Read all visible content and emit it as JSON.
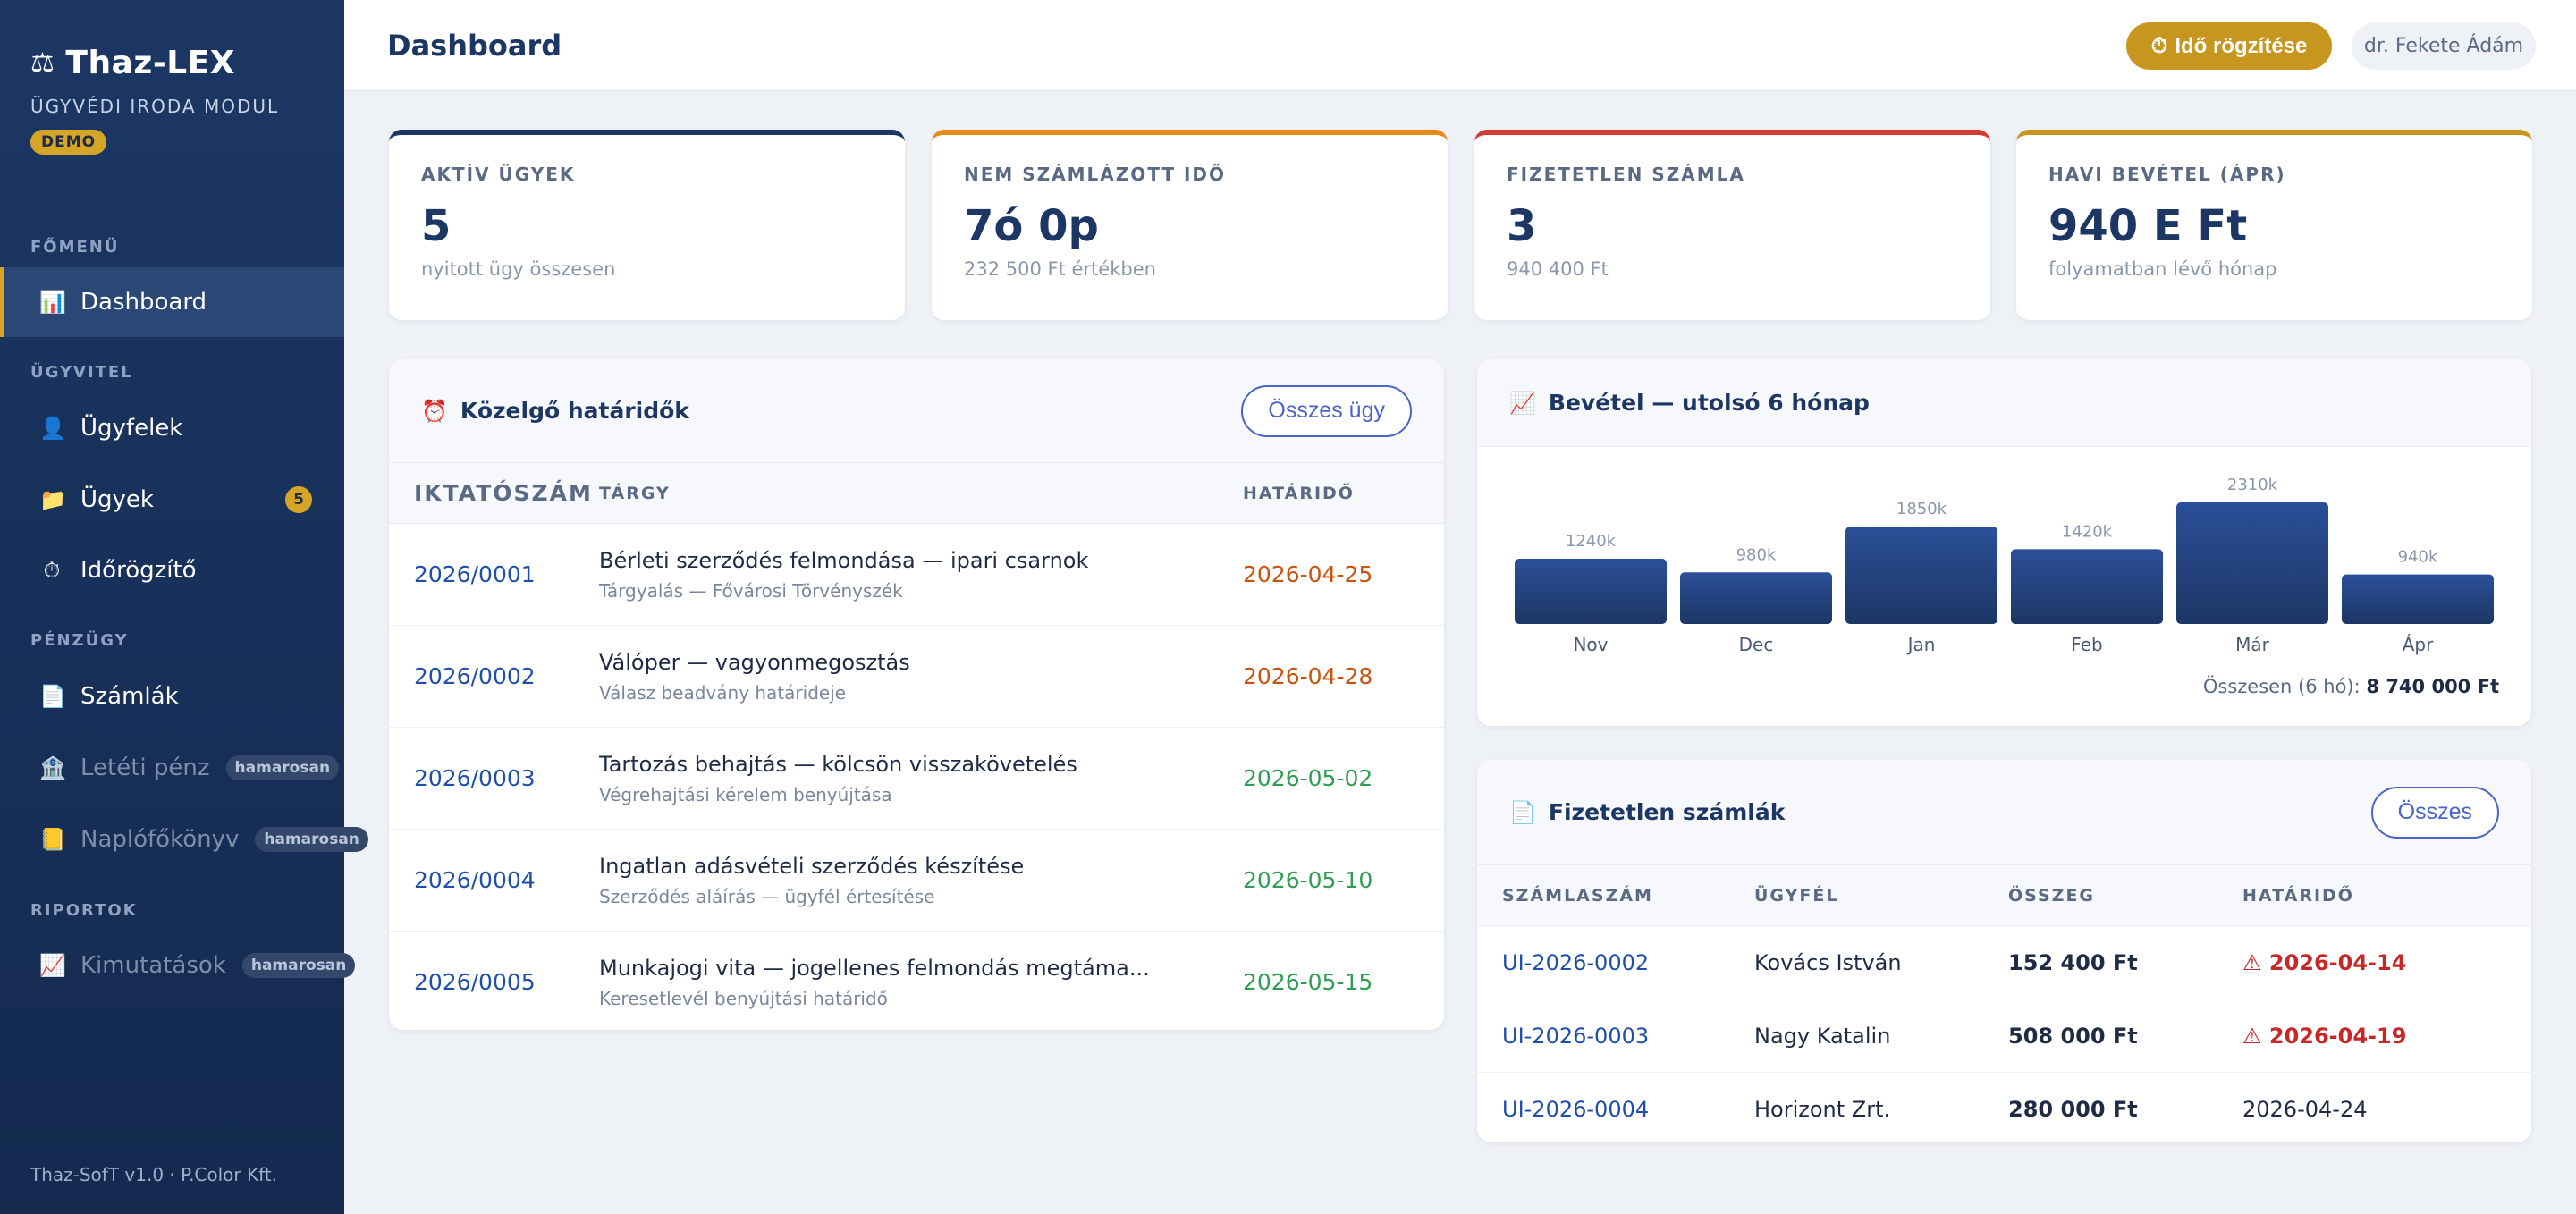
{
  "brand": {
    "title": "Thaz-LEX",
    "logo": "⚖",
    "subtitle": "ÜGYVÉDI IRODA MODUL",
    "badge": "DEMO"
  },
  "nav": {
    "sections": {
      "main": "FŐMENÜ",
      "cases": "ÜGYVITEL",
      "finance": "PÉNZÜGY",
      "reports": "RIPORTOK"
    },
    "items": [
      {
        "label": "Dashboard",
        "icon": "📊"
      },
      {
        "label": "Ügyfelek",
        "icon": "👤"
      },
      {
        "label": "Ügyek",
        "icon": "📁",
        "badge": "5"
      },
      {
        "label": "Időrögzítő",
        "icon": "⏱"
      },
      {
        "label": "Számlák",
        "icon": "📄"
      },
      {
        "label": "Letéti pénz",
        "icon": "🏦",
        "badge": "hamarosan"
      },
      {
        "label": "Naplófőkönyv",
        "icon": "📒",
        "badge": "hamarosan"
      },
      {
        "label": "Kimutatások",
        "icon": "📈",
        "badge": "hamarosan"
      }
    ],
    "footer": "Thaz-SofT v1.0 · P.Color Kft."
  },
  "topbar": {
    "title": "Dashboard",
    "time_button": "Idő rögzítése",
    "time_icon": "⏱",
    "user": "dr. Fekete Ádám"
  },
  "kpis": [
    {
      "label": "AKTÍV ÜGYEK",
      "value": "5",
      "sub": "nyitott ügy összesen",
      "color": "#1c3764"
    },
    {
      "label": "NEM SZÁMLÁZOTT IDŐ",
      "value": "7ó 0p",
      "sub": "232 500 Ft értékben",
      "color": "#e8891c"
    },
    {
      "label": "FIZETETLEN SZÁMLA",
      "value": "3",
      "sub": "940 400 Ft",
      "color": "#d23b32"
    },
    {
      "label": "HAVI BEVÉTEL (ÁPR)",
      "value": "940 E Ft",
      "sub": "folyamatban lévő hónap",
      "color": "#c7961e"
    }
  ],
  "deadlines": {
    "title": "Közelgő határidők",
    "icon": "⏰",
    "button": "Összes ügy",
    "headers": [
      "IKTATÓSZÁM",
      "TÁRGY",
      "HATÁRIDŐ"
    ],
    "rows": [
      {
        "id": "2026/0001",
        "subject": "Bérleti szerződés felmondása — ipari csarnok",
        "detail": "Tárgyalás — Fővárosi Törvényszék",
        "due": "2026-04-25",
        "status": "warn"
      },
      {
        "id": "2026/0002",
        "subject": "Válóper — vagyonmegosztás",
        "detail": "Válasz beadvány határideje",
        "due": "2026-04-28",
        "status": "warn"
      },
      {
        "id": "2026/0003",
        "subject": "Tartozás behajtás — kölcsön visszakövetelés",
        "detail": "Végrehajtási kérelem benyújtása",
        "due": "2026-05-02",
        "status": "ok"
      },
      {
        "id": "2026/0004",
        "subject": "Ingatlan adásvételi szerződés készítése",
        "detail": "Szerződés aláírás — ügyfél értesítése",
        "due": "2026-05-10",
        "status": "ok"
      },
      {
        "id": "2026/0005",
        "subject": "Munkajogi vita — jogellenes felmondás megtáma...",
        "detail": "Keresetlevél benyújtási határidő",
        "due": "2026-05-15",
        "status": "ok"
      }
    ]
  },
  "revenue": {
    "title": "Bevétel — utolsó 6 hónap",
    "icon": "📈",
    "total_label": "Összesen (6 hó):",
    "total_value": "8 740 000 Ft"
  },
  "chart_data": {
    "type": "bar",
    "categories": [
      "Nov",
      "Dec",
      "Jan",
      "Feb",
      "Már",
      "Ápr"
    ],
    "values": [
      1240,
      980,
      1850,
      1420,
      2310,
      940
    ],
    "data_labels": [
      "1240k",
      "980k",
      "1850k",
      "1420k",
      "2310k",
      "940k"
    ],
    "unit": "k",
    "ylim": [
      0,
      2310
    ],
    "grid": false,
    "legend": "none"
  },
  "invoices": {
    "title": "Fizetetlen számlák",
    "icon": "📄",
    "button": "Összes",
    "headers": [
      "SZÁMLASZÁM",
      "ÜGYFÉL",
      "ÖSSZEG",
      "HATÁRIDŐ"
    ],
    "rows": [
      {
        "number": "UI-2026-0002",
        "client": "Kovács István",
        "amount": "152 400 Ft",
        "due": "2026-04-14",
        "overdue": true
      },
      {
        "number": "UI-2026-0003",
        "client": "Nagy Katalin",
        "amount": "508 000 Ft",
        "due": "2026-04-19",
        "overdue": true
      },
      {
        "number": "UI-2026-0004",
        "client": "Horizont Zrt.",
        "amount": "280 000 Ft",
        "due": "2026-04-24",
        "overdue": false
      }
    ],
    "overdue_icon": "⚠"
  }
}
